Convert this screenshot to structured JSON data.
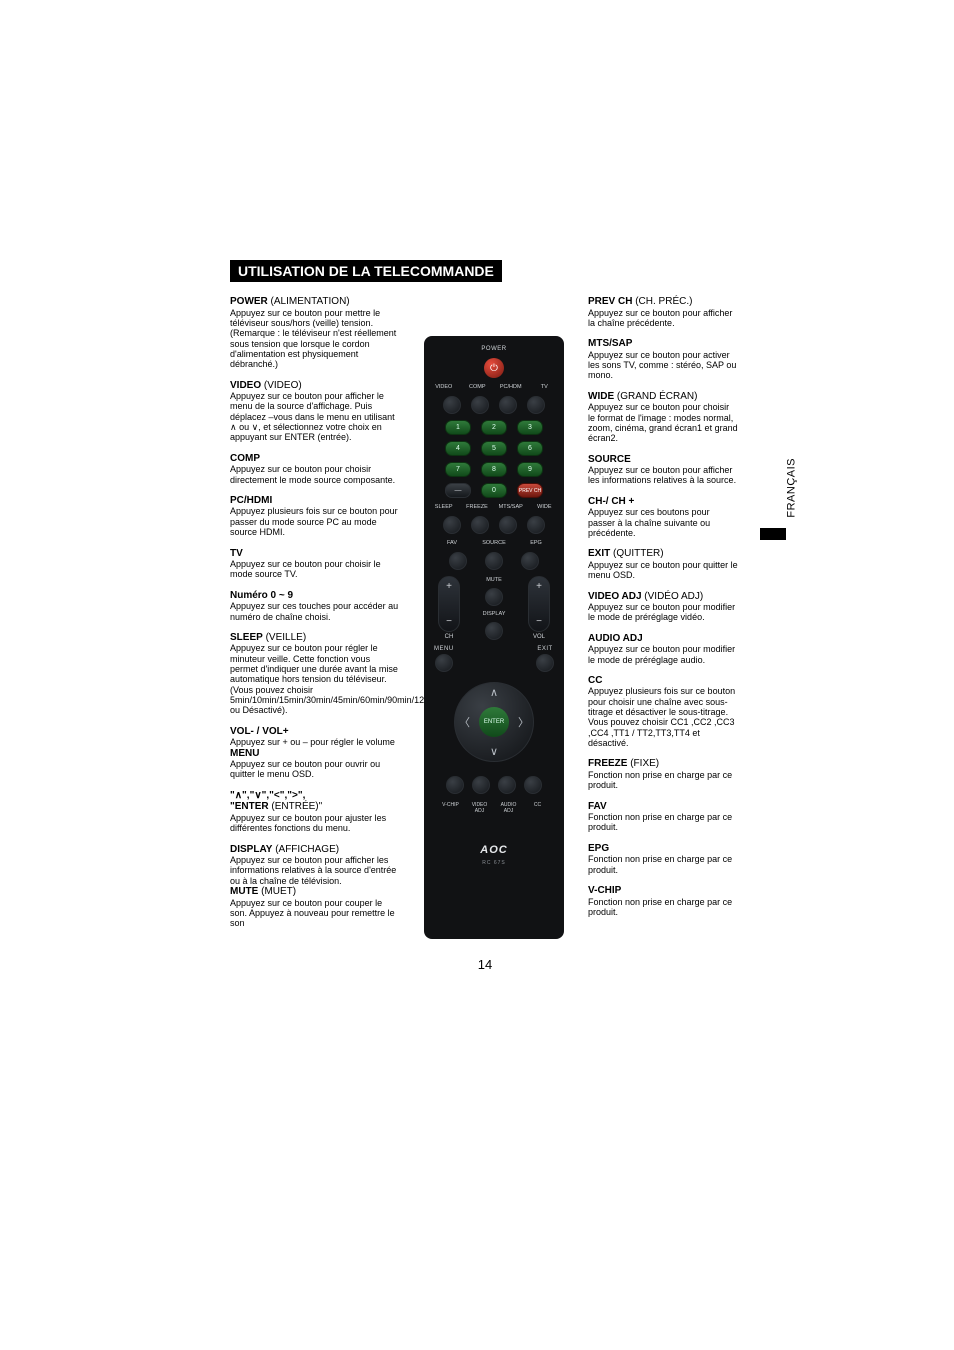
{
  "title": "UTILISATION DE LA TELECOMMANDE",
  "page_number": "14",
  "side_tab": "FRANÇAIS",
  "colors": {
    "page_bg": "#ffffff",
    "text": "#000000",
    "title_bg": "#000000",
    "title_fg": "#ffffff",
    "remote_body": "#111214",
    "remote_text": "#cfd3d7",
    "btn_green": "#2f7a3a",
    "btn_red": "#c94a3b",
    "btn_gray": "#3a3f45"
  },
  "left": [
    {
      "head_bold": "POWER",
      "head_rest": " (ALIMENTATION)",
      "body": "Appuyez sur ce bouton pour mettre le téléviseur sous/hors (veille)\ntension. (Remarque : le téléviseur n'est réellement sous tension que lorsque le cordon d'alimentation est physiquement débranché.)"
    },
    {
      "head_bold": "VIDEO",
      "head_rest": " (VIDEO)",
      "body": "Appuyez sur ce bouton pour afficher le menu de la source d'affichage. Puis déplacez –vous dans le menu en utilisant ∧ ou ∨, et sélectionnez votre choix en appuyant sur ENTER (entrée)."
    },
    {
      "head_bold": "COMP",
      "head_rest": "",
      "body": "Appuyez sur ce bouton pour choisir directement le mode source composante."
    },
    {
      "head_bold": "PC/HDMI",
      "head_rest": "",
      "body": "Appuyez plusieurs fois sur ce bouton pour passer du mode source PC au mode source HDMI."
    },
    {
      "head_bold": "TV",
      "head_rest": "",
      "body": "Appuyez  sur ce bouton pour choisir le mode source TV."
    },
    {
      "head_bold": "Numéro 0 ~ 9",
      "head_rest": "",
      "body": "Appuyez sur ces touches pour accéder au numéro de chaîne choisi."
    },
    {
      "head_bold": "SLEEP",
      "head_rest": " (VEILLE)",
      "body": "Appuyez sur ce bouton pour régler le minuteur veille. Cette fonction vous permet d'indiquer une durée avant la mise automatique hors tension du téléviseur. (Vous pouvez choisir 5min/10min/15min/30min/45min/60min/90min/120min/180min/240min ou Désactivé)."
    },
    {
      "head_bold": "VOL- / VOL+",
      "head_rest": "",
      "body": "Appuyez sur + ou – pour régler le volume",
      "head2_bold": "MENU",
      "body2": "Appuyez sur ce bouton pour ouvrir ou quitter  le menu OSD."
    },
    {
      "head_bold": "\"∧\",\"∨\",\"<\",\">\",",
      "head_rest": "",
      "line2_bold": "\"ENTER",
      "line2_rest": " (ENTRÉE)\"",
      "body": "Appuyez sur ce bouton pour ajuster les différentes fonctions du menu."
    },
    {
      "head_bold": "DISPLAY",
      "head_rest": " (AFFICHAGE)",
      "body": "Appuyez sur ce bouton pour afficher les informations relatives à la source d'entrée ou à la chaîne de télévision.",
      "head2_bold": "MUTE",
      "head2_rest": " (MUET)",
      "body2": "Appuyez sur ce bouton pour couper le son. Appuyez à nouveau pour remettre le son"
    }
  ],
  "right": [
    {
      "head_bold": "PREV CH",
      "head_rest": " (CH. PRÉC.)",
      "body": "Appuyez sur ce bouton pour afficher la chaîne précédente."
    },
    {
      "head_bold": "MTS/SAP",
      "head_rest": "",
      "body": "Appuyez sur ce bouton pour activer les sons TV,  comme : stéréo, SAP ou mono."
    },
    {
      "head_bold": "WIDE",
      "head_rest": " (GRAND ÉCRAN)",
      "body": "Appuyez sur ce bouton pour choisir le format de l'image : modes normal, zoom, cinéma, grand écran1 et grand écran2."
    },
    {
      "head_bold": "SOURCE",
      "head_rest": "",
      "body": "Appuyez sur ce bouton pour afficher les informations relatives à la source."
    },
    {
      "head_bold": "CH-/ CH +",
      "head_rest": "",
      "body": "Appuyez sur ces boutons pour passer à la chaîne suivante ou précédente."
    },
    {
      "head_bold": "EXIT",
      "head_rest": " (QUITTER)",
      "body": "Appuyez sur ce bouton pour quitter le menu OSD."
    },
    {
      "head_bold": "VIDEO ADJ",
      "head_rest": " (VIDÉO ADJ)",
      "body": "Appuyez sur ce bouton pour modifier le mode de préréglage vidéo."
    },
    {
      "head_bold": "AUDIO ADJ",
      "head_rest": "",
      "body": "Appuyez sur ce bouton pour modifier le mode de préréglage audio."
    },
    {
      "head_bold": "CC",
      "head_rest": "",
      "body": "Appuyez plusieurs fois sur ce bouton pour choisir une chaîne avec sous-titrage et désactiver le sous-titrage. Vous pouvez choisir CC1 ,CC2 ,CC3 ,CC4 ,TT1 / TT2,TT3,TT4 et désactivé."
    },
    {
      "head_bold": "FREEZE",
      "head_rest": " (FIXE)",
      "body": "Fonction non prise en charge par ce produit."
    },
    {
      "head_bold": "FAV",
      "head_rest": "",
      "body": "Fonction non prise en charge par ce produit."
    },
    {
      "head_bold": "EPG",
      "head_rest": "",
      "body": "Fonction non prise en charge par ce produit."
    },
    {
      "head_bold": "V-CHIP",
      "head_rest": "",
      "body": "Fonction non prise en charge par ce produit."
    }
  ],
  "remote": {
    "power_label": "POWER",
    "src_labels": [
      "VIDEO",
      "COMP",
      "PC/HDM",
      "TV"
    ],
    "numbers": [
      "1",
      "2",
      "3",
      "4",
      "5",
      "6",
      "7",
      "8",
      "9"
    ],
    "dash": "—",
    "zero": "0",
    "prevch": "PREV CH",
    "row2_labels": [
      "SLEEP",
      "FREEZE",
      "MTS/SAP",
      "WIDE"
    ],
    "row3_labels": [
      "FAV",
      "SOURCE",
      "EPG"
    ],
    "mute": "MUTE",
    "display": "DISPLAY",
    "ch": "CH",
    "vol": "VOL",
    "menu": "MENU",
    "exit": "EXIT",
    "enter": "ENTER",
    "bottom_labels": [
      "V-CHIP",
      "VIDEO ADJ",
      "AUDIO ADJ",
      "CC"
    ],
    "brand": "AOC",
    "brand_sub": "RC 67S"
  }
}
